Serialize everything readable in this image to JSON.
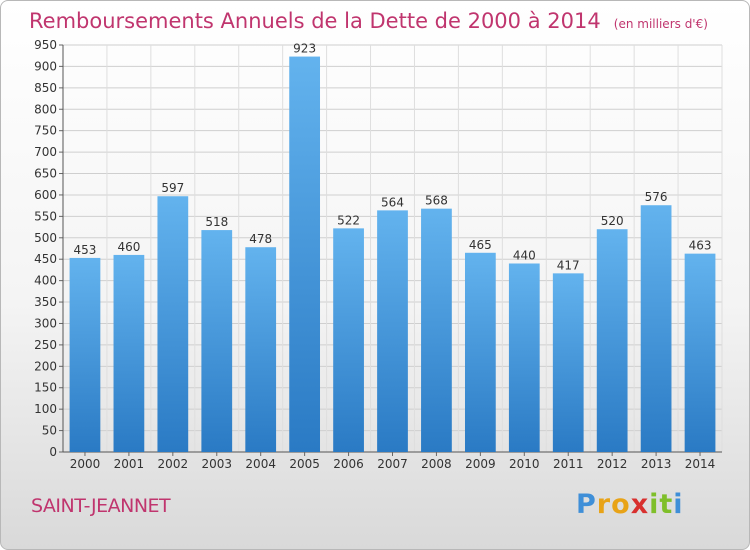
{
  "title": "Remboursements Annuels de la Dette de 2000 à 2014",
  "unit": "(en milliers d'€)",
  "city": "SAINT-JEANNET",
  "logo": {
    "letters": [
      "P",
      "r",
      "o",
      "x",
      "i",
      "t",
      "i"
    ],
    "colors": [
      "#3f8fd8",
      "#e8a317",
      "#e8a317",
      "#d8302e",
      "#7fbf2a",
      "#7fbf2a",
      "#3f8fd8"
    ]
  },
  "colors": {
    "bar_top": "#63b3ee",
    "bar_bottom": "#2a7ac4",
    "title": "#c0356e"
  },
  "chart_data": {
    "type": "bar",
    "title": "Remboursements Annuels de la Dette de 2000 à 2014",
    "subtitle": "(en milliers d'€)",
    "categories": [
      "2000",
      "2001",
      "2002",
      "2003",
      "2004",
      "2005",
      "2006",
      "2007",
      "2008",
      "2009",
      "2010",
      "2011",
      "2012",
      "2013",
      "2014"
    ],
    "values": [
      453,
      460,
      597,
      518,
      478,
      923,
      522,
      564,
      568,
      465,
      440,
      417,
      520,
      576,
      463
    ],
    "value_labels": [
      "453",
      "460",
      "597",
      "518",
      "478",
      "923",
      "522",
      "564",
      "568",
      "465",
      "440",
      "417",
      "520",
      "576",
      "463"
    ],
    "yticks": [
      "0",
      "50",
      "100",
      "150",
      "200",
      "250",
      "300",
      "350",
      "400",
      "450",
      "500",
      "550",
      "600",
      "650",
      "700",
      "750",
      "800",
      "850",
      "900",
      "950"
    ],
    "ylim": [
      0,
      950
    ],
    "grid": true,
    "legend": "none"
  }
}
